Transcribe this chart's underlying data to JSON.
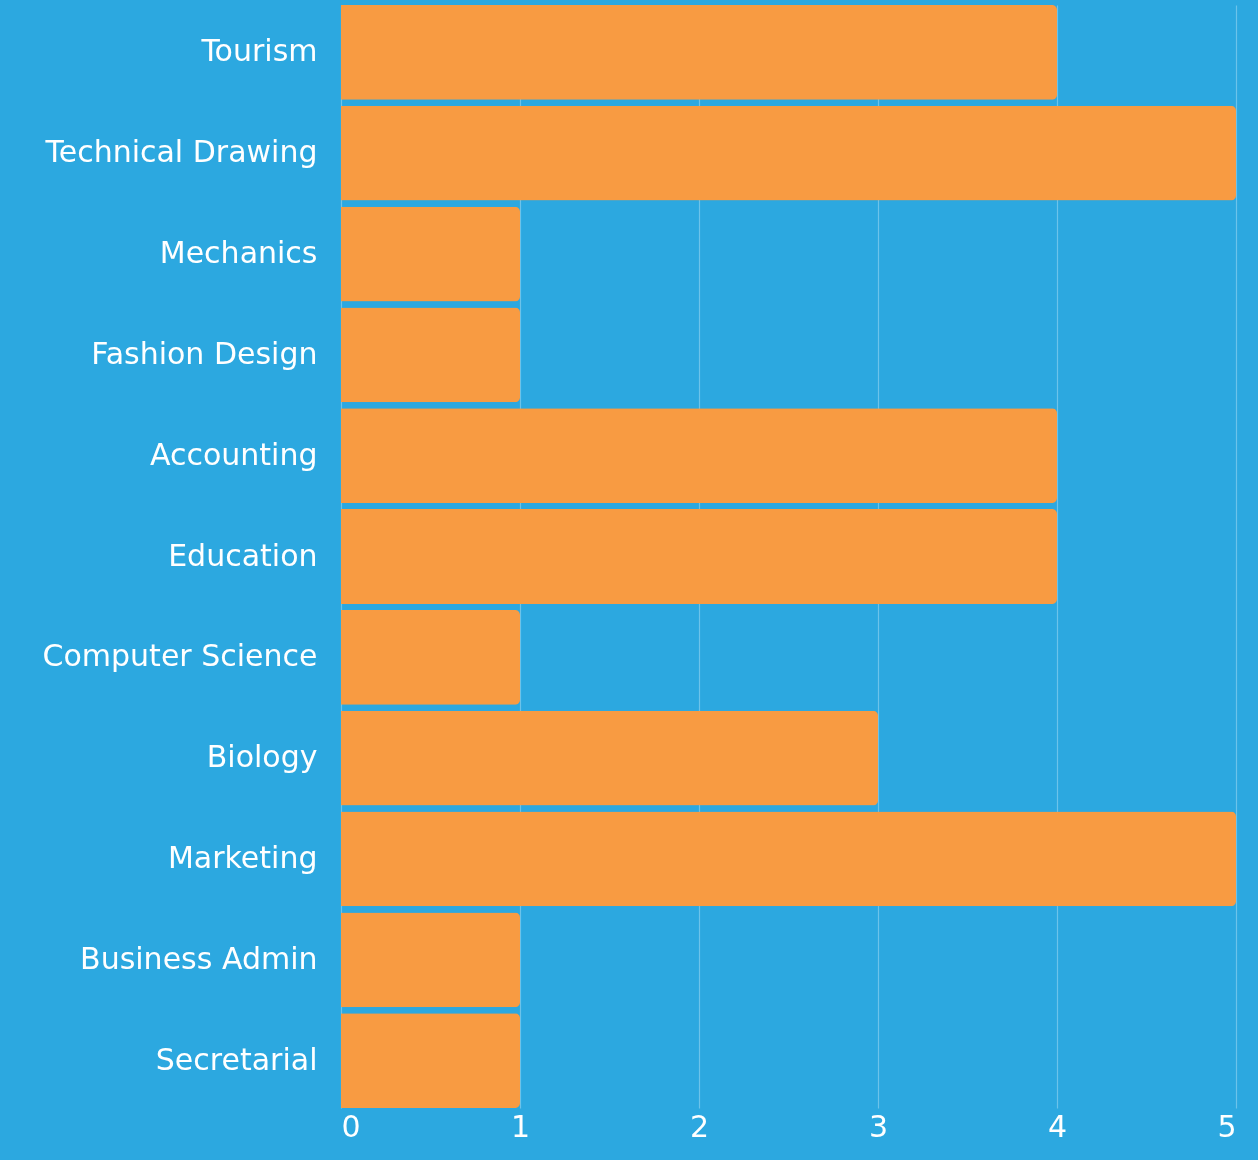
{
  "chart_data": {
    "type": "bar",
    "orientation": "horizontal",
    "categories": [
      "Tourism",
      "Technical Drawing",
      "Mechanics",
      "Fashion Design",
      "Accounting",
      "Education",
      "Computer Science",
      "Biology",
      "Marketing",
      "Business Admin",
      "Secretarial"
    ],
    "values": [
      4,
      5,
      1,
      1,
      4,
      4,
      1,
      3,
      5,
      1,
      1
    ],
    "color": "#f89b42",
    "xlim": [
      0,
      5
    ],
    "xticks": [
      0,
      1,
      2,
      3,
      4,
      5
    ],
    "grid": "x"
  }
}
